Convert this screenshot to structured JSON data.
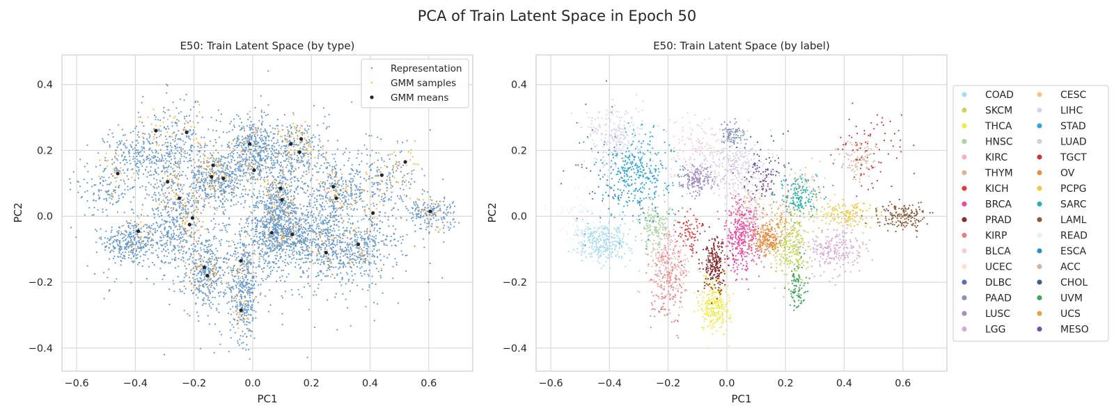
{
  "figure": {
    "title": "PCA of Train Latent Space in Epoch 50"
  },
  "colors": {
    "grid": "#d9d9d9",
    "axes_frame": "#cccccc",
    "representation": "#6699cc",
    "gmm_samples": "#ffb347",
    "gmm_means": "#262626"
  },
  "chart_data": [
    {
      "type": "scatter",
      "title": "E50: Train Latent Space (by type)",
      "xlabel": "PC1",
      "ylabel": "PC2",
      "xlim": [
        -0.65,
        0.75
      ],
      "ylim": [
        -0.47,
        0.49
      ],
      "xticks": [
        -0.6,
        -0.4,
        -0.2,
        0.0,
        0.2,
        0.4,
        0.6
      ],
      "xtick_labels": [
        "−0.6",
        "−0.4",
        "−0.2",
        "0.0",
        "0.2",
        "0.4",
        "0.6"
      ],
      "yticks": [
        -0.4,
        -0.2,
        0.0,
        0.2,
        0.4
      ],
      "ytick_labels": [
        "−0.4",
        "−0.2",
        "0.0",
        "0.2",
        "0.4"
      ],
      "grid": true,
      "legend_position": "top-right",
      "series": [
        {
          "name": "Representation",
          "color": "#6699cc"
        },
        {
          "name": "GMM samples",
          "color": "#ffb347"
        },
        {
          "name": "GMM means",
          "color": "#262626",
          "points": [
            [
              -0.46,
              0.13
            ],
            [
              -0.39,
              -0.045
            ],
            [
              -0.33,
              0.26
            ],
            [
              -0.29,
              0.105
            ],
            [
              -0.25,
              0.055
            ],
            [
              -0.225,
              0.255
            ],
            [
              -0.215,
              -0.025
            ],
            [
              -0.205,
              -0.005
            ],
            [
              -0.165,
              -0.155
            ],
            [
              -0.155,
              -0.18
            ],
            [
              -0.14,
              0.12
            ],
            [
              -0.135,
              0.155
            ],
            [
              -0.1,
              0.115
            ],
            [
              -0.04,
              -0.135
            ],
            [
              -0.04,
              -0.285
            ],
            [
              -0.01,
              0.22
            ],
            [
              0.005,
              0.14
            ],
            [
              0.065,
              -0.05
            ],
            [
              0.095,
              0.085
            ],
            [
              0.1,
              0.05
            ],
            [
              0.13,
              0.22
            ],
            [
              0.135,
              -0.055
            ],
            [
              0.16,
              0.195
            ],
            [
              0.165,
              0.235
            ],
            [
              0.25,
              -0.11
            ],
            [
              0.275,
              0.09
            ],
            [
              0.285,
              0.055
            ],
            [
              0.36,
              -0.085
            ],
            [
              0.41,
              0.01
            ],
            [
              0.44,
              0.125
            ],
            [
              0.52,
              0.165
            ],
            [
              0.605,
              0.015
            ]
          ]
        }
      ],
      "clusters": [
        {
          "cx": -0.42,
          "cy": -0.08,
          "sx": 0.045,
          "sy": 0.035,
          "n": 300
        },
        {
          "cx": -0.27,
          "cy": -0.04,
          "sx": 0.04,
          "sy": 0.06,
          "n": 300
        },
        {
          "cx": -0.16,
          "cy": -0.17,
          "sx": 0.035,
          "sy": 0.06,
          "n": 320
        },
        {
          "cx": -0.03,
          "cy": -0.22,
          "sx": 0.025,
          "sy": 0.08,
          "n": 380
        },
        {
          "cx": 0.06,
          "cy": -0.05,
          "sx": 0.035,
          "sy": 0.06,
          "n": 380
        },
        {
          "cx": 0.14,
          "cy": -0.06,
          "sx": 0.035,
          "sy": 0.04,
          "n": 260
        },
        {
          "cx": 0.25,
          "cy": -0.08,
          "sx": 0.05,
          "sy": 0.06,
          "n": 340
        },
        {
          "cx": 0.37,
          "cy": -0.1,
          "sx": 0.06,
          "sy": 0.05,
          "n": 300
        },
        {
          "cx": 0.1,
          "cy": 0.04,
          "sx": 0.04,
          "sy": 0.05,
          "n": 300
        },
        {
          "cx": 0.29,
          "cy": 0.07,
          "sx": 0.05,
          "sy": 0.04,
          "n": 230
        },
        {
          "cx": 0.44,
          "cy": 0.1,
          "sx": 0.06,
          "sy": 0.05,
          "n": 170
        },
        {
          "cx": 0.6,
          "cy": 0.01,
          "sx": 0.05,
          "sy": 0.025,
          "n": 170
        },
        {
          "cx": -0.38,
          "cy": 0.18,
          "sx": 0.06,
          "sy": 0.05,
          "n": 230
        },
        {
          "cx": -0.25,
          "cy": 0.18,
          "sx": 0.07,
          "sy": 0.08,
          "n": 340
        },
        {
          "cx": -0.12,
          "cy": 0.11,
          "sx": 0.05,
          "sy": 0.04,
          "n": 340
        },
        {
          "cx": 0.0,
          "cy": 0.2,
          "sx": 0.04,
          "sy": 0.05,
          "n": 380
        },
        {
          "cx": 0.14,
          "cy": 0.2,
          "sx": 0.06,
          "sy": 0.05,
          "n": 280
        },
        {
          "cx": -0.5,
          "cy": 0.08,
          "sx": 0.05,
          "sy": 0.04,
          "n": 110
        },
        {
          "cx": 0.0,
          "cy": 0.0,
          "sx": 0.28,
          "sy": 0.15,
          "n": 600
        }
      ]
    },
    {
      "type": "scatter",
      "title": "E50: Train Latent Space (by label)",
      "xlabel": "PC1",
      "ylabel": "PC2",
      "xlim": [
        -0.65,
        0.75
      ],
      "ylim": [
        -0.47,
        0.49
      ],
      "xticks": [
        -0.6,
        -0.4,
        -0.2,
        0.0,
        0.2,
        0.4,
        0.6
      ],
      "xtick_labels": [
        "−0.6",
        "−0.4",
        "−0.2",
        "0.0",
        "0.2",
        "0.4",
        "0.6"
      ],
      "yticks": [
        -0.4,
        -0.2,
        0.0,
        0.2,
        0.4
      ],
      "ytick_labels": [
        "−0.4",
        "−0.2",
        "0.0",
        "0.2",
        "0.4"
      ],
      "grid": true,
      "legend_position": "outside-right",
      "series": [
        {
          "name": "COAD",
          "color": "#a6dcf2",
          "cx": -0.42,
          "cy": -0.08,
          "sx": 0.045,
          "sy": 0.03,
          "n": 300
        },
        {
          "name": "SKCM",
          "color": "#c4d95a",
          "cx": 0.22,
          "cy": -0.09,
          "sx": 0.03,
          "sy": 0.05,
          "n": 260
        },
        {
          "name": "THCA",
          "color": "#f2e94e",
          "cx": -0.04,
          "cy": -0.27,
          "sx": 0.025,
          "sy": 0.04,
          "n": 280
        },
        {
          "name": "HNSC",
          "color": "#a9d4a3",
          "cx": -0.24,
          "cy": -0.03,
          "sx": 0.03,
          "sy": 0.04,
          "n": 170
        },
        {
          "name": "KIRC",
          "color": "#f4b3b8",
          "cx": -0.19,
          "cy": -0.15,
          "sx": 0.035,
          "sy": 0.05,
          "n": 230
        },
        {
          "name": "THYM",
          "color": "#d4b89c",
          "cx": 0.45,
          "cy": 0.17,
          "sx": 0.03,
          "sy": 0.03,
          "n": 90
        },
        {
          "name": "KICH",
          "color": "#e03c3c",
          "cx": -0.13,
          "cy": -0.05,
          "sx": 0.025,
          "sy": 0.04,
          "n": 80
        },
        {
          "name": "BRCA",
          "color": "#e84aa3",
          "cx": 0.05,
          "cy": -0.06,
          "sx": 0.03,
          "sy": 0.055,
          "n": 380
        },
        {
          "name": "PRAD",
          "color": "#8b2c2c",
          "cx": -0.04,
          "cy": -0.15,
          "sx": 0.02,
          "sy": 0.04,
          "n": 220
        },
        {
          "name": "KIRP",
          "color": "#e98080",
          "cx": -0.2,
          "cy": -0.22,
          "sx": 0.03,
          "sy": 0.06,
          "n": 140
        },
        {
          "name": "BLCA",
          "color": "#f8cdd8",
          "cx": -0.12,
          "cy": 0.22,
          "sx": 0.05,
          "sy": 0.05,
          "n": 110
        },
        {
          "name": "UCEC",
          "color": "#fde1cc",
          "cx": 0.1,
          "cy": 0.04,
          "sx": 0.035,
          "sy": 0.05,
          "n": 110
        },
        {
          "name": "DLBC",
          "color": "#5b6fb0",
          "cx": -0.45,
          "cy": 0.15,
          "sx": 0.05,
          "sy": 0.08,
          "n": 30
        },
        {
          "name": "PAAD",
          "color": "#8693b8",
          "cx": 0.02,
          "cy": 0.25,
          "sx": 0.02,
          "sy": 0.02,
          "n": 90
        },
        {
          "name": "LUSC",
          "color": "#a48ec4",
          "cx": -0.1,
          "cy": 0.11,
          "sx": 0.03,
          "sy": 0.02,
          "n": 180
        },
        {
          "name": "LGG",
          "color": "#dba8d2",
          "cx": 0.37,
          "cy": -0.1,
          "sx": 0.05,
          "sy": 0.035,
          "n": 230
        },
        {
          "name": "CESC",
          "color": "#f9c187",
          "cx": 0.27,
          "cy": 0.08,
          "sx": 0.04,
          "sy": 0.05,
          "n": 60
        },
        {
          "name": "LIHC",
          "color": "#d9d3ea",
          "cx": -0.38,
          "cy": 0.24,
          "sx": 0.05,
          "sy": 0.05,
          "n": 230
        },
        {
          "name": "STAD",
          "color": "#2aa8dc",
          "cx": -0.3,
          "cy": 0.14,
          "sx": 0.06,
          "sy": 0.06,
          "n": 300
        },
        {
          "name": "LUAD",
          "color": "#d7cbe8",
          "cx": 0.02,
          "cy": 0.15,
          "sx": 0.06,
          "sy": 0.05,
          "n": 300
        },
        {
          "name": "TGCT",
          "color": "#c8373d",
          "cx": 0.49,
          "cy": 0.2,
          "sx": 0.06,
          "sy": 0.06,
          "n": 80
        },
        {
          "name": "OV",
          "color": "#e58f46",
          "cx": 0.14,
          "cy": -0.07,
          "sx": 0.025,
          "sy": 0.025,
          "n": 230
        },
        {
          "name": "PCPG",
          "color": "#f0c940",
          "cx": 0.4,
          "cy": 0.01,
          "sx": 0.05,
          "sy": 0.02,
          "n": 140
        },
        {
          "name": "SARC",
          "color": "#2ab3a8",
          "cx": 0.25,
          "cy": 0.06,
          "sx": 0.04,
          "sy": 0.03,
          "n": 170
        },
        {
          "name": "LAML",
          "color": "#8c5a3a",
          "cx": 0.6,
          "cy": 0.0,
          "sx": 0.04,
          "sy": 0.02,
          "n": 170
        },
        {
          "name": "READ",
          "color": "#e3f0fa",
          "cx": -0.5,
          "cy": -0.02,
          "sx": 0.05,
          "sy": 0.05,
          "n": 80
        },
        {
          "name": "ESCA",
          "color": "#2f8fc4",
          "cx": -0.33,
          "cy": 0.05,
          "sx": 0.06,
          "sy": 0.05,
          "n": 60
        },
        {
          "name": "ACC",
          "color": "#d8b29a",
          "cx": 0.07,
          "cy": 0.02,
          "sx": 0.03,
          "sy": 0.03,
          "n": 50
        },
        {
          "name": "CHOL",
          "color": "#3a5f8f",
          "cx": 0.1,
          "cy": 0.17,
          "sx": 0.05,
          "sy": 0.05,
          "n": 30
        },
        {
          "name": "UVM",
          "color": "#3da65a",
          "cx": 0.24,
          "cy": -0.22,
          "sx": 0.015,
          "sy": 0.04,
          "n": 90
        },
        {
          "name": "UCS",
          "color": "#f0a040",
          "cx": 0.19,
          "cy": 0.0,
          "sx": 0.03,
          "sy": 0.03,
          "n": 40
        },
        {
          "name": "MESO",
          "color": "#7152a3",
          "cx": 0.13,
          "cy": 0.12,
          "sx": 0.03,
          "sy": 0.03,
          "n": 70
        }
      ]
    }
  ]
}
